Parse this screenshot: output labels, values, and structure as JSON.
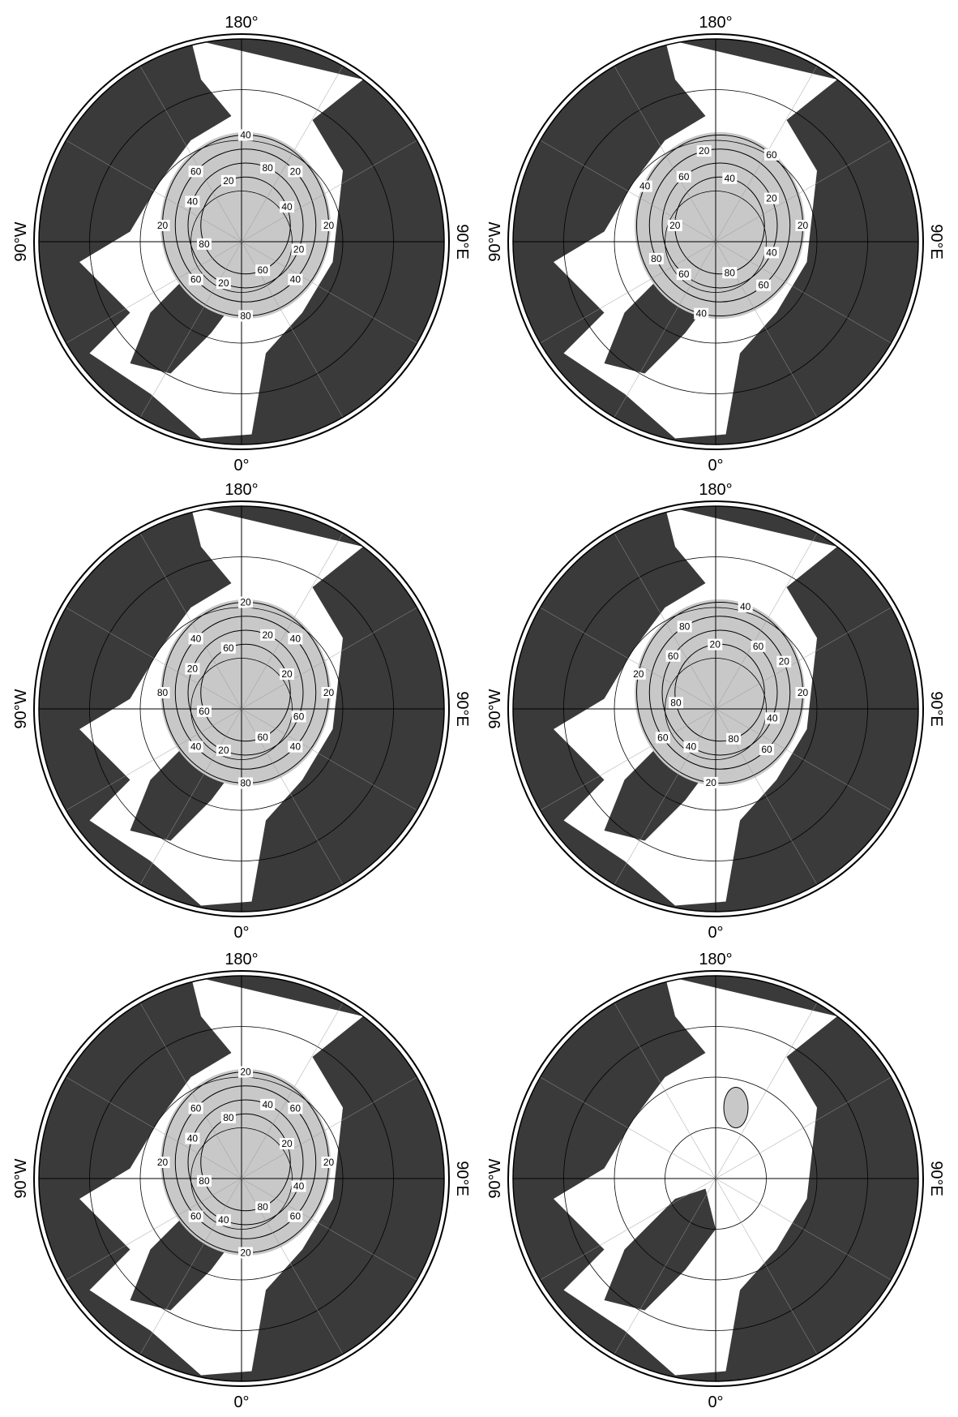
{
  "panels": [
    {
      "labels": {
        "top": "180°",
        "bottom": "0°",
        "left": "90°W",
        "right": "90°E"
      },
      "contour_labels": [
        "20",
        "20",
        "40",
        "60",
        "80",
        "20",
        "60",
        "80",
        "20",
        "40",
        "60",
        "20",
        "40",
        "80",
        "20",
        "40"
      ]
    },
    {
      "labels": {
        "top": "180°",
        "bottom": "0°",
        "left": "90°W",
        "right": "90°E"
      },
      "contour_labels": [
        "20",
        "40",
        "60",
        "80",
        "40",
        "60",
        "80",
        "20",
        "40",
        "60",
        "20",
        "40",
        "60",
        "20"
      ]
    },
    {
      "labels": {
        "top": "180°",
        "bottom": "0°",
        "left": "90°W",
        "right": "90°E"
      },
      "contour_labels": [
        "20",
        "60",
        "40",
        "60",
        "80",
        "20",
        "40",
        "60",
        "80",
        "20",
        "40",
        "60",
        "20",
        "20",
        "40",
        "20"
      ]
    },
    {
      "labels": {
        "top": "180°",
        "bottom": "0°",
        "left": "90°W",
        "right": "90°E"
      },
      "contour_labels": [
        "20",
        "40",
        "60",
        "80",
        "20",
        "40",
        "60",
        "80",
        "20",
        "60",
        "80",
        "20",
        "40",
        "60",
        "20"
      ]
    },
    {
      "labels": {
        "top": "180°",
        "bottom": "0°",
        "left": "90°W",
        "right": "90°E"
      },
      "contour_labels": [
        "20",
        "40",
        "60",
        "80",
        "20",
        "40",
        "60",
        "80",
        "20",
        "40",
        "60",
        "80",
        "20",
        "40",
        "60",
        "20"
      ]
    },
    {
      "labels": {
        "top": "180°",
        "bottom": "0°",
        "left": "90°W",
        "right": "90°E"
      }
    }
  ]
}
